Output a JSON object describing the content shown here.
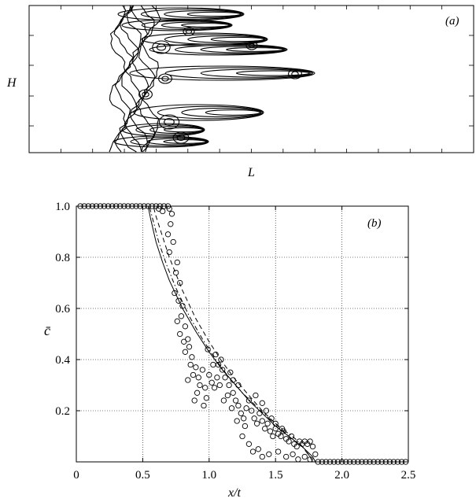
{
  "panel_a": {
    "label": "(a)",
    "xlabel": "L",
    "ylabel": "H"
  },
  "chart_data": [
    {
      "type": "contour",
      "label": "(a)",
      "xlabel": "L",
      "ylabel": "H"
    },
    {
      "type": "scatter",
      "label": "(b)",
      "xlabel": "x/t",
      "ylabel": "c̄",
      "xlim": [
        0,
        2.5
      ],
      "ylim": [
        0,
        1.0
      ],
      "xticks": [
        0,
        0.5,
        1.0,
        1.5,
        2.0,
        2.5
      ],
      "xtick_labels": [
        "0",
        "0.5",
        "1.0",
        "1.5",
        "2.0",
        "2.5"
      ],
      "yticks": [
        0.2,
        0.4,
        0.6,
        0.8,
        1.0
      ],
      "ytick_labels": [
        "0.2",
        "0.4",
        "0.6",
        "0.8",
        "1.0"
      ],
      "grid": true,
      "series": [
        {
          "style": "circles",
          "points": [
            [
              0.03,
              1.0
            ],
            [
              0.06,
              1.0
            ],
            [
              0.09,
              1.0
            ],
            [
              0.12,
              1.0
            ],
            [
              0.15,
              1.0
            ],
            [
              0.18,
              1.0
            ],
            [
              0.21,
              1.0
            ],
            [
              0.24,
              1.0
            ],
            [
              0.27,
              1.0
            ],
            [
              0.3,
              1.0
            ],
            [
              0.33,
              1.0
            ],
            [
              0.36,
              1.0
            ],
            [
              0.39,
              1.0
            ],
            [
              0.42,
              1.0
            ],
            [
              0.45,
              1.0
            ],
            [
              0.48,
              1.0
            ],
            [
              0.51,
              1.0
            ],
            [
              0.54,
              1.0
            ],
            [
              0.57,
              1.0
            ],
            [
              0.6,
              1.0
            ],
            [
              0.63,
              1.0
            ],
            [
              0.66,
              1.0
            ],
            [
              0.69,
              1.0
            ],
            [
              0.62,
              0.99
            ],
            [
              0.65,
              0.98
            ],
            [
              0.7,
              0.99
            ],
            [
              0.72,
              0.97
            ],
            [
              0.71,
              0.93
            ],
            [
              0.69,
              0.89
            ],
            [
              0.73,
              0.86
            ],
            [
              0.7,
              0.82
            ],
            [
              0.76,
              0.78
            ],
            [
              0.75,
              0.74
            ],
            [
              0.78,
              0.7
            ],
            [
              0.74,
              0.66
            ],
            [
              0.77,
              0.63
            ],
            [
              0.8,
              0.61
            ],
            [
              0.79,
              0.57
            ],
            [
              0.76,
              0.55
            ],
            [
              0.82,
              0.53
            ],
            [
              0.78,
              0.5
            ],
            [
              0.81,
              0.47
            ],
            [
              0.84,
              0.48
            ],
            [
              0.85,
              0.45
            ],
            [
              0.82,
              0.43
            ],
            [
              0.87,
              0.41
            ],
            [
              0.86,
              0.38
            ],
            [
              0.9,
              0.37
            ],
            [
              0.88,
              0.34
            ],
            [
              0.84,
              0.32
            ],
            [
              0.92,
              0.33
            ],
            [
              0.95,
              0.36
            ],
            [
              0.93,
              0.3
            ],
            [
              0.97,
              0.29
            ],
            [
              0.91,
              0.27
            ],
            [
              0.98,
              0.25
            ],
            [
              0.89,
              0.24
            ],
            [
              0.96,
              0.22
            ],
            [
              1.0,
              0.34
            ],
            [
              1.02,
              0.31
            ],
            [
              1.04,
              0.29
            ],
            [
              1.06,
              0.33
            ],
            [
              1.08,
              0.3
            ],
            [
              1.03,
              0.38
            ],
            [
              1.07,
              0.38
            ],
            [
              1.1,
              0.36
            ],
            [
              1.12,
              0.33
            ],
            [
              1.15,
              0.3
            ],
            [
              1.14,
              0.26
            ],
            [
              1.11,
              0.24
            ],
            [
              1.18,
              0.27
            ],
            [
              1.2,
              0.24
            ],
            [
              1.17,
              0.21
            ],
            [
              1.22,
              0.22
            ],
            [
              1.24,
              0.19
            ],
            [
              1.21,
              0.16
            ],
            [
              1.26,
              0.17
            ],
            [
              1.28,
              0.21
            ],
            [
              1.3,
              0.24
            ],
            [
              1.27,
              0.14
            ],
            [
              1.32,
              0.2
            ],
            [
              1.34,
              0.17
            ],
            [
              1.36,
              0.15
            ],
            [
              1.38,
              0.19
            ],
            [
              1.4,
              0.16
            ],
            [
              1.42,
              0.13
            ],
            [
              1.44,
              0.15
            ],
            [
              1.46,
              0.12
            ],
            [
              1.48,
              0.1
            ],
            [
              1.5,
              0.13
            ],
            [
              1.52,
              0.11
            ],
            [
              1.54,
              0.1
            ],
            [
              1.56,
              0.12
            ],
            [
              1.58,
              0.09
            ],
            [
              1.6,
              0.08
            ],
            [
              1.62,
              0.1
            ],
            [
              1.64,
              0.07
            ],
            [
              1.66,
              0.06
            ],
            [
              1.68,
              0.08
            ],
            [
              1.7,
              0.07
            ],
            [
              1.72,
              0.08
            ],
            [
              1.74,
              0.07
            ],
            [
              1.76,
              0.08
            ],
            [
              1.78,
              0.06
            ],
            [
              1.25,
              0.1
            ],
            [
              1.3,
              0.07
            ],
            [
              1.33,
              0.04
            ],
            [
              1.37,
              0.05
            ],
            [
              1.4,
              0.02
            ],
            [
              1.45,
              0.03
            ],
            [
              1.52,
              0.04
            ],
            [
              1.58,
              0.02
            ],
            [
              1.63,
              0.03
            ],
            [
              1.67,
              0.01
            ],
            [
              1.72,
              0.02
            ],
            [
              1.76,
              0.01
            ],
            [
              1.8,
              0.03
            ],
            [
              1.35,
              0.26
            ],
            [
              1.4,
              0.23
            ],
            [
              1.43,
              0.2
            ],
            [
              1.47,
              0.17
            ],
            [
              1.5,
              0.15
            ],
            [
              1.55,
              0.13
            ],
            [
              1.22,
              0.3
            ],
            [
              1.18,
              0.32
            ],
            [
              1.16,
              0.35
            ],
            [
              1.09,
              0.4
            ],
            [
              1.05,
              0.42
            ],
            [
              0.99,
              0.44
            ],
            [
              1.82,
              0.0
            ],
            [
              1.85,
              0.0
            ],
            [
              1.88,
              0.0
            ],
            [
              1.91,
              0.0
            ],
            [
              1.94,
              0.0
            ],
            [
              1.97,
              0.0
            ],
            [
              2.0,
              0.0
            ],
            [
              2.03,
              0.0
            ],
            [
              2.06,
              0.0
            ],
            [
              2.09,
              0.0
            ],
            [
              2.12,
              0.0
            ],
            [
              2.15,
              0.0
            ],
            [
              2.18,
              0.0
            ],
            [
              2.21,
              0.0
            ],
            [
              2.24,
              0.0
            ],
            [
              2.27,
              0.0
            ],
            [
              2.3,
              0.0
            ],
            [
              2.33,
              0.0
            ],
            [
              2.36,
              0.0
            ],
            [
              2.39,
              0.0
            ],
            [
              2.42,
              0.0
            ],
            [
              2.45,
              0.0
            ],
            [
              2.48,
              0.0
            ]
          ]
        },
        {
          "style": "solid",
          "points": [
            [
              0.0,
              1.0
            ],
            [
              0.54,
              1.0
            ],
            [
              0.56,
              0.95
            ],
            [
              0.6,
              0.86
            ],
            [
              0.65,
              0.78
            ],
            [
              0.7,
              0.71
            ],
            [
              0.8,
              0.6
            ],
            [
              0.9,
              0.51
            ],
            [
              1.0,
              0.43
            ],
            [
              1.1,
              0.36
            ],
            [
              1.2,
              0.3
            ],
            [
              1.3,
              0.24
            ],
            [
              1.4,
              0.19
            ],
            [
              1.5,
              0.14
            ],
            [
              1.6,
              0.1
            ],
            [
              1.7,
              0.06
            ],
            [
              1.78,
              0.02
            ],
            [
              1.8,
              0.0
            ],
            [
              2.5,
              0.0
            ]
          ]
        },
        {
          "style": "dashed",
          "points": [
            [
              0.0,
              1.0
            ],
            [
              0.58,
              1.0
            ],
            [
              0.6,
              0.96
            ],
            [
              0.65,
              0.88
            ],
            [
              0.7,
              0.8
            ],
            [
              0.8,
              0.67
            ],
            [
              0.9,
              0.56
            ],
            [
              1.0,
              0.47
            ],
            [
              1.1,
              0.39
            ],
            [
              1.2,
              0.32
            ],
            [
              1.3,
              0.26
            ],
            [
              1.4,
              0.2
            ],
            [
              1.5,
              0.15
            ],
            [
              1.6,
              0.1
            ],
            [
              1.7,
              0.06
            ],
            [
              1.76,
              0.02
            ],
            [
              1.78,
              0.0
            ],
            [
              2.5,
              0.0
            ]
          ]
        },
        {
          "style": "dash-dot",
          "points": [
            [
              0.0,
              1.0
            ],
            [
              0.55,
              1.0
            ],
            [
              0.58,
              0.94
            ],
            [
              0.62,
              0.86
            ],
            [
              0.68,
              0.77
            ],
            [
              0.75,
              0.68
            ],
            [
              0.85,
              0.57
            ],
            [
              0.95,
              0.48
            ],
            [
              1.05,
              0.4
            ],
            [
              1.15,
              0.33
            ],
            [
              1.25,
              0.27
            ],
            [
              1.35,
              0.22
            ],
            [
              1.45,
              0.17
            ],
            [
              1.55,
              0.13
            ],
            [
              1.65,
              0.09
            ],
            [
              1.72,
              0.05
            ],
            [
              1.76,
              0.02
            ],
            [
              1.78,
              0.0
            ],
            [
              2.5,
              0.0
            ]
          ]
        }
      ]
    }
  ]
}
